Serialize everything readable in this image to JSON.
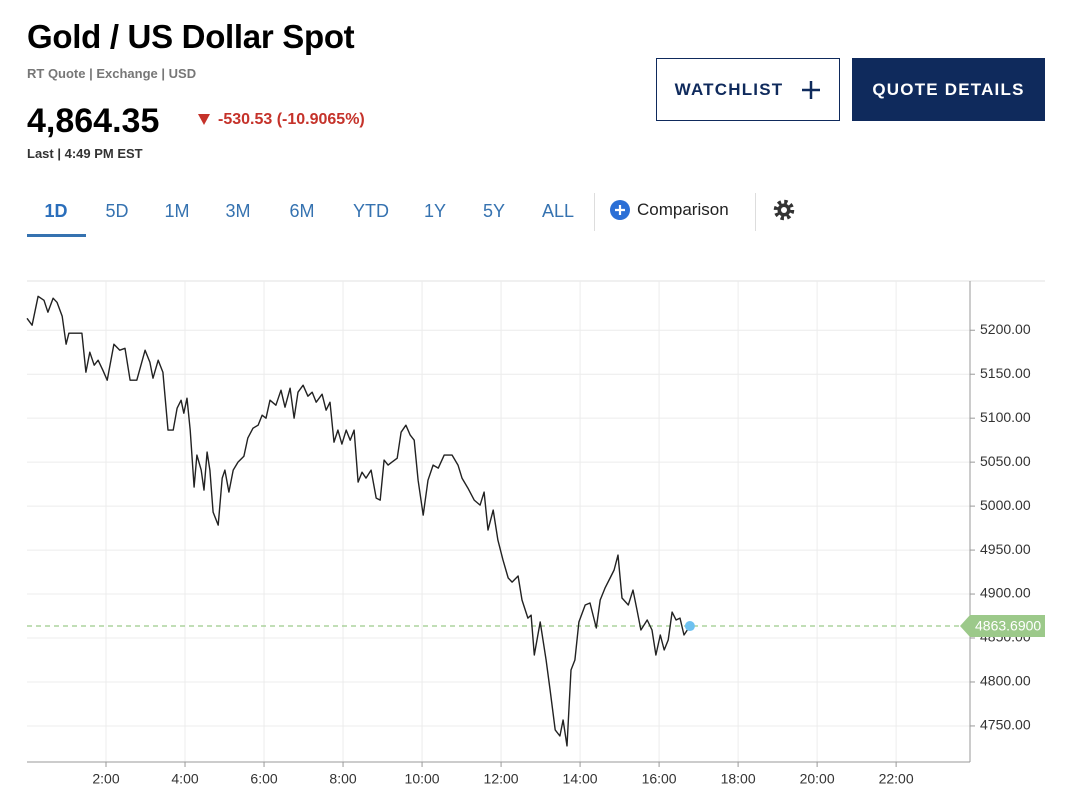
{
  "header": {
    "title": "Gold / US Dollar Spot",
    "subtitle": "RT Quote | Exchange | USD",
    "price": "4,864.35",
    "change": "-530.53 (-10.9065%)",
    "last": "Last | 4:49 PM EST"
  },
  "buttons": [
    "WATCHLIST",
    "QUOTE DETAILS"
  ],
  "tabs": [
    "1D",
    "5D",
    "1M",
    "3M",
    "6M",
    "YTD",
    "1Y",
    "5Y",
    "ALL"
  ],
  "comparison": "Comparison",
  "chart_data": {
    "type": "line",
    "color": "#222222",
    "x": [
      0.0,
      0.13,
      0.28,
      0.43,
      0.53,
      0.66,
      0.76,
      0.89,
      0.99,
      1.06,
      1.39,
      1.49,
      1.59,
      1.7,
      1.8,
      1.92,
      2.03,
      2.2,
      2.35,
      2.48,
      2.61,
      2.78,
      2.99,
      3.11,
      3.19,
      3.32,
      3.44,
      3.57,
      3.7,
      3.8,
      3.9,
      3.97,
      4.05,
      4.13,
      4.23,
      4.3,
      4.41,
      4.48,
      4.56,
      4.63,
      4.71,
      4.84,
      4.94,
      5.01,
      5.11,
      5.22,
      5.34,
      5.49,
      5.59,
      5.72,
      5.85,
      5.95,
      6.05,
      6.15,
      6.3,
      6.43,
      6.53,
      6.66,
      6.76,
      6.86,
      6.99,
      7.11,
      7.22,
      7.32,
      7.47,
      7.57,
      7.67,
      7.77,
      7.87,
      7.97,
      8.08,
      8.18,
      8.28,
      8.38,
      8.48,
      8.58,
      8.71,
      8.84,
      8.94,
      9.04,
      9.14,
      9.24,
      9.37,
      9.47,
      9.59,
      9.7,
      9.8,
      9.9,
      10.03,
      10.15,
      10.28,
      10.41,
      10.56,
      10.76,
      10.91,
      11.01,
      11.16,
      11.32,
      11.47,
      11.57,
      11.67,
      11.8,
      11.92,
      12.05,
      12.18,
      12.28,
      12.43,
      12.53,
      12.68,
      12.76,
      12.84,
      12.99,
      13.14,
      13.24,
      13.37,
      13.49,
      13.57,
      13.67,
      13.77,
      13.87,
      13.97,
      14.13,
      14.25,
      14.41,
      14.51,
      14.63,
      14.76,
      14.86,
      14.96,
      15.06,
      15.22,
      15.34,
      15.44,
      15.54,
      15.7,
      15.82,
      15.92,
      16.03,
      16.13,
      16.23,
      16.33,
      16.43,
      16.53,
      16.63,
      16.78
    ],
    "values": [
      5213.6,
      5205.7,
      5238.6,
      5234.1,
      5220.5,
      5236.4,
      5231.8,
      5215.9,
      5184.1,
      5196.6,
      5196.6,
      5152.3,
      5175.0,
      5160.2,
      5165.9,
      5154.5,
      5143.2,
      5184.1,
      5177.3,
      5179.5,
      5143.2,
      5143.2,
      5177.3,
      5163.6,
      5145.5,
      5165.9,
      5152.3,
      5086.4,
      5086.4,
      5111.4,
      5120.5,
      5105.7,
      5122.7,
      5086.4,
      5021.6,
      5058.0,
      5040.9,
      5018.2,
      5061.4,
      5040.9,
      4993.2,
      4978.4,
      5031.8,
      5040.9,
      5015.9,
      5040.9,
      5050.0,
      5056.8,
      5077.3,
      5088.6,
      5092.0,
      5103.4,
      5100.0,
      5120.5,
      5114.8,
      5131.8,
      5112.5,
      5134.1,
      5100.0,
      5129.5,
      5137.5,
      5125.0,
      5129.5,
      5118.2,
      5127.3,
      5109.1,
      5118.2,
      5072.7,
      5086.4,
      5070.5,
      5086.4,
      5075.0,
      5086.4,
      5027.3,
      5038.6,
      5031.8,
      5040.9,
      5009.1,
      5006.8,
      5052.3,
      5046.6,
      5050.0,
      5054.5,
      5084.1,
      5092.0,
      5080.7,
      5075.0,
      5029.5,
      4989.8,
      5029.5,
      5046.6,
      5043.2,
      5058.0,
      5058.0,
      5046.6,
      5031.8,
      5020.5,
      5006.8,
      5001.1,
      5015.9,
      4972.7,
      4995.5,
      4961.4,
      4938.6,
      4918.2,
      4913.6,
      4920.5,
      4893.2,
      4872.7,
      4876.1,
      4830.7,
      4868.2,
      4825.0,
      4790.9,
      4745.5,
      4738.6,
      4756.8,
      4727.3,
      4813.6,
      4825.0,
      4868.2,
      4887.5,
      4889.8,
      4861.4,
      4893.2,
      4906.8,
      4918.2,
      4927.3,
      4944.3,
      4895.5,
      4887.5,
      4904.5,
      4881.8,
      4859.1,
      4870.5,
      4859.1,
      4830.7,
      4853.4,
      4836.4,
      4847.7,
      4879.5,
      4870.5,
      4872.7,
      4853.4,
      4863.6
    ],
    "xlim": [
      0,
      23.87
    ],
    "xticks": [
      {
        "value": 2,
        "label": "2:00"
      },
      {
        "value": 4,
        "label": "4:00"
      },
      {
        "value": 6,
        "label": "6:00"
      },
      {
        "value": 8,
        "label": "8:00"
      },
      {
        "value": 10,
        "label": "10:00"
      },
      {
        "value": 12,
        "label": "12:00"
      },
      {
        "value": 14,
        "label": "14:00"
      },
      {
        "value": 16,
        "label": "16:00"
      },
      {
        "value": 18,
        "label": "18:00"
      },
      {
        "value": 20,
        "label": "20:00"
      },
      {
        "value": 22,
        "label": "22:00"
      }
    ],
    "ylim": [
      4709,
      5256
    ],
    "yticks": [
      {
        "value": 4750,
        "label": "4750.00"
      },
      {
        "value": 4800,
        "label": "4800.00"
      },
      {
        "value": 4850,
        "label": "4850.00"
      },
      {
        "value": 4900,
        "label": "4900.00"
      },
      {
        "value": 4950,
        "label": "4950.00"
      },
      {
        "value": 5000,
        "label": "5000.00"
      },
      {
        "value": 5050,
        "label": "5050.00"
      },
      {
        "value": 5100,
        "label": "5100.00"
      },
      {
        "value": 5150,
        "label": "5150.00"
      },
      {
        "value": 5200,
        "label": "5200.00"
      }
    ],
    "grid": true,
    "reference": {
      "value": 4863.69,
      "label": "4863.6900",
      "color": "#9cc98a"
    },
    "marker_color": "#6ec1f0"
  }
}
